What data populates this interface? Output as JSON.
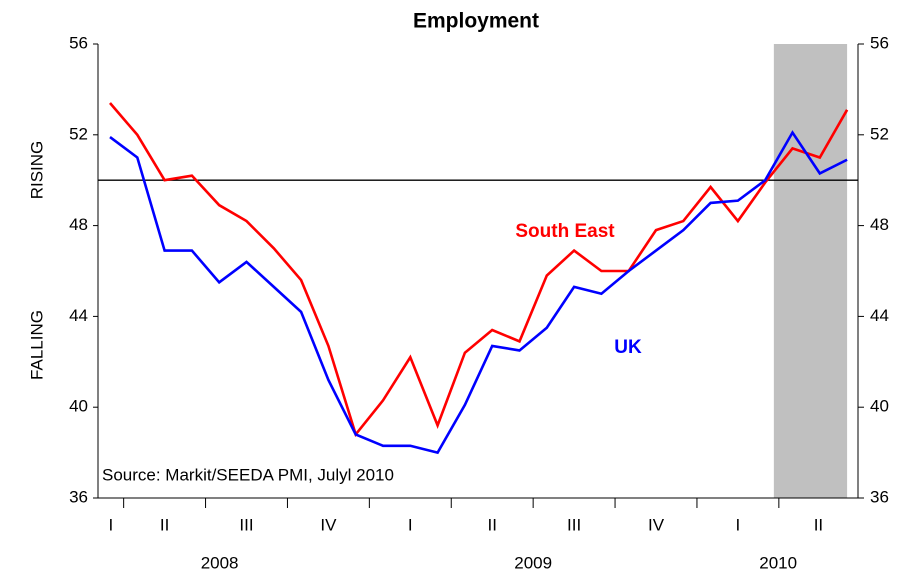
{
  "chart_data": {
    "type": "line",
    "title": "Employment",
    "y_label_upper": "RISING",
    "y_label_lower": "FALLING",
    "source": "Source: Markit/SEEDA PMI, Julyl 2010",
    "quarters": [
      "I",
      "II",
      "III",
      "IV",
      "I",
      "II",
      "III",
      "IV",
      "I",
      "II"
    ],
    "years": [
      "2008",
      "2009",
      "2010"
    ],
    "reference_line": 50,
    "series": [
      {
        "name": "South East",
        "color": "#ff0000",
        "values": [
          53.4,
          52.0,
          50.0,
          50.2,
          48.9,
          48.2,
          47.0,
          45.6,
          42.7,
          38.8,
          40.3,
          42.2,
          39.2,
          42.4,
          43.4,
          42.9,
          45.8,
          46.9,
          46.0,
          46.0,
          47.8,
          48.2,
          49.7,
          48.2,
          49.9,
          51.4,
          51.0,
          53.1
        ]
      },
      {
        "name": "UK",
        "color": "#0000ff",
        "values": [
          51.9,
          51.0,
          46.9,
          46.9,
          45.5,
          46.4,
          45.3,
          44.2,
          41.2,
          38.8,
          38.3,
          38.3,
          38.0,
          40.1,
          42.7,
          42.5,
          43.5,
          45.3,
          45.0,
          46.0,
          46.9,
          47.8,
          49.0,
          49.1,
          50.0,
          52.1,
          50.3,
          50.9
        ]
      }
    ],
    "ylim": [
      36,
      56
    ],
    "yticks": [
      36,
      40,
      44,
      48,
      52,
      56
    ],
    "y2lim": [
      36,
      56
    ],
    "y2ticks": [
      36,
      40,
      44,
      48,
      52,
      56
    ]
  }
}
